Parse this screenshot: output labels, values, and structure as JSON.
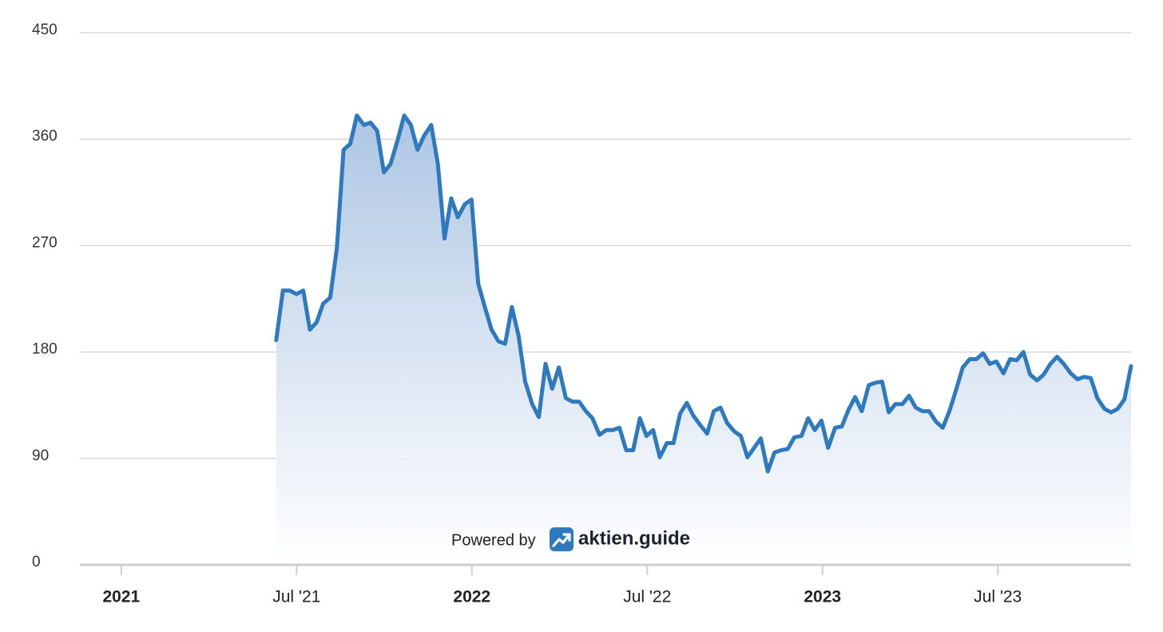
{
  "chart_data": {
    "type": "area",
    "annotations": [
      "Powered by",
      "aktien.guide"
    ],
    "color": "#2f7abf",
    "xlim": [
      2020.882,
      2023.88
    ],
    "xticks": [
      2021,
      {
        "value": 2021.5,
        "label": "Jul '21"
      },
      2022,
      {
        "value": 2022.5,
        "label": "Jul '22"
      },
      2023,
      {
        "value": 2023.5,
        "label": "Jul '23"
      }
    ],
    "ylim": [
      0,
      450
    ],
    "yticks": [
      0,
      90,
      180,
      270,
      360,
      450
    ],
    "grid": true,
    "x": [
      2021.442,
      2021.461,
      2021.48,
      2021.5,
      2021.519,
      2021.538,
      2021.557,
      2021.576,
      2021.596,
      2021.615,
      2021.634,
      2021.653,
      2021.672,
      2021.692,
      2021.711,
      2021.73,
      2021.749,
      2021.768,
      2021.788,
      2021.807,
      2021.826,
      2021.845,
      2021.864,
      2021.884,
      2021.903,
      2021.922,
      2021.941,
      2021.96,
      2021.98,
      2021.999,
      2022.018,
      2022.037,
      2022.056,
      2022.076,
      2022.095,
      2022.114,
      2022.133,
      2022.152,
      2022.172,
      2022.191,
      2022.21,
      2022.229,
      2022.248,
      2022.268,
      2022.287,
      2022.306,
      2022.325,
      2022.344,
      2022.364,
      2022.383,
      2022.402,
      2022.421,
      2022.44,
      2022.46,
      2022.479,
      2022.498,
      2022.517,
      2022.536,
      2022.556,
      2022.575,
      2022.594,
      2022.613,
      2022.632,
      2022.652,
      2022.671,
      2022.69,
      2022.709,
      2022.728,
      2022.748,
      2022.767,
      2022.786,
      2022.805,
      2022.824,
      2022.844,
      2022.863,
      2022.882,
      2022.901,
      2022.92,
      2022.94,
      2022.959,
      2022.978,
      2022.997,
      2023.016,
      2023.036,
      2023.055,
      2023.074,
      2023.093,
      2023.112,
      2023.132,
      2023.151,
      2023.17,
      2023.189,
      2023.208,
      2023.228,
      2023.247,
      2023.266,
      2023.285,
      2023.304,
      2023.324,
      2023.343,
      2023.362,
      2023.381,
      2023.4,
      2023.42,
      2023.439,
      2023.458,
      2023.477,
      2023.496,
      2023.516,
      2023.535,
      2023.554,
      2023.573,
      2023.592,
      2023.612,
      2023.631,
      2023.65,
      2023.669,
      2023.688,
      2023.708,
      2023.727,
      2023.746,
      2023.765,
      2023.784,
      2023.804,
      2023.823,
      2023.842,
      2023.861,
      2023.88
    ],
    "values": [
      190,
      232,
      232,
      229,
      232,
      199,
      205,
      221,
      226,
      268,
      351,
      356,
      380,
      372,
      374,
      367,
      332,
      339,
      359,
      380,
      372,
      351,
      363,
      372,
      339,
      276,
      310,
      294,
      305,
      309,
      238,
      218,
      199,
      189,
      187,
      218,
      194,
      155,
      136,
      125,
      170,
      149,
      167,
      141,
      138,
      138,
      130,
      124,
      110,
      114,
      114,
      116,
      97,
      97,
      124,
      109,
      114,
      91,
      103,
      103,
      128,
      137,
      126,
      118,
      111,
      130,
      133,
      120,
      113,
      109,
      91,
      99,
      107,
      79,
      95,
      97,
      98,
      108,
      109,
      124,
      114,
      122,
      99,
      116,
      117,
      131,
      142,
      130,
      152,
      154,
      155,
      129,
      136,
      136,
      143,
      133,
      130,
      130,
      121,
      116,
      130,
      148,
      167,
      174,
      174,
      179,
      170,
      172,
      162,
      174,
      173,
      180,
      161,
      156,
      161,
      170,
      176,
      170,
      162,
      157,
      159,
      158,
      141,
      132,
      129,
      132,
      140,
      168
    ]
  }
}
